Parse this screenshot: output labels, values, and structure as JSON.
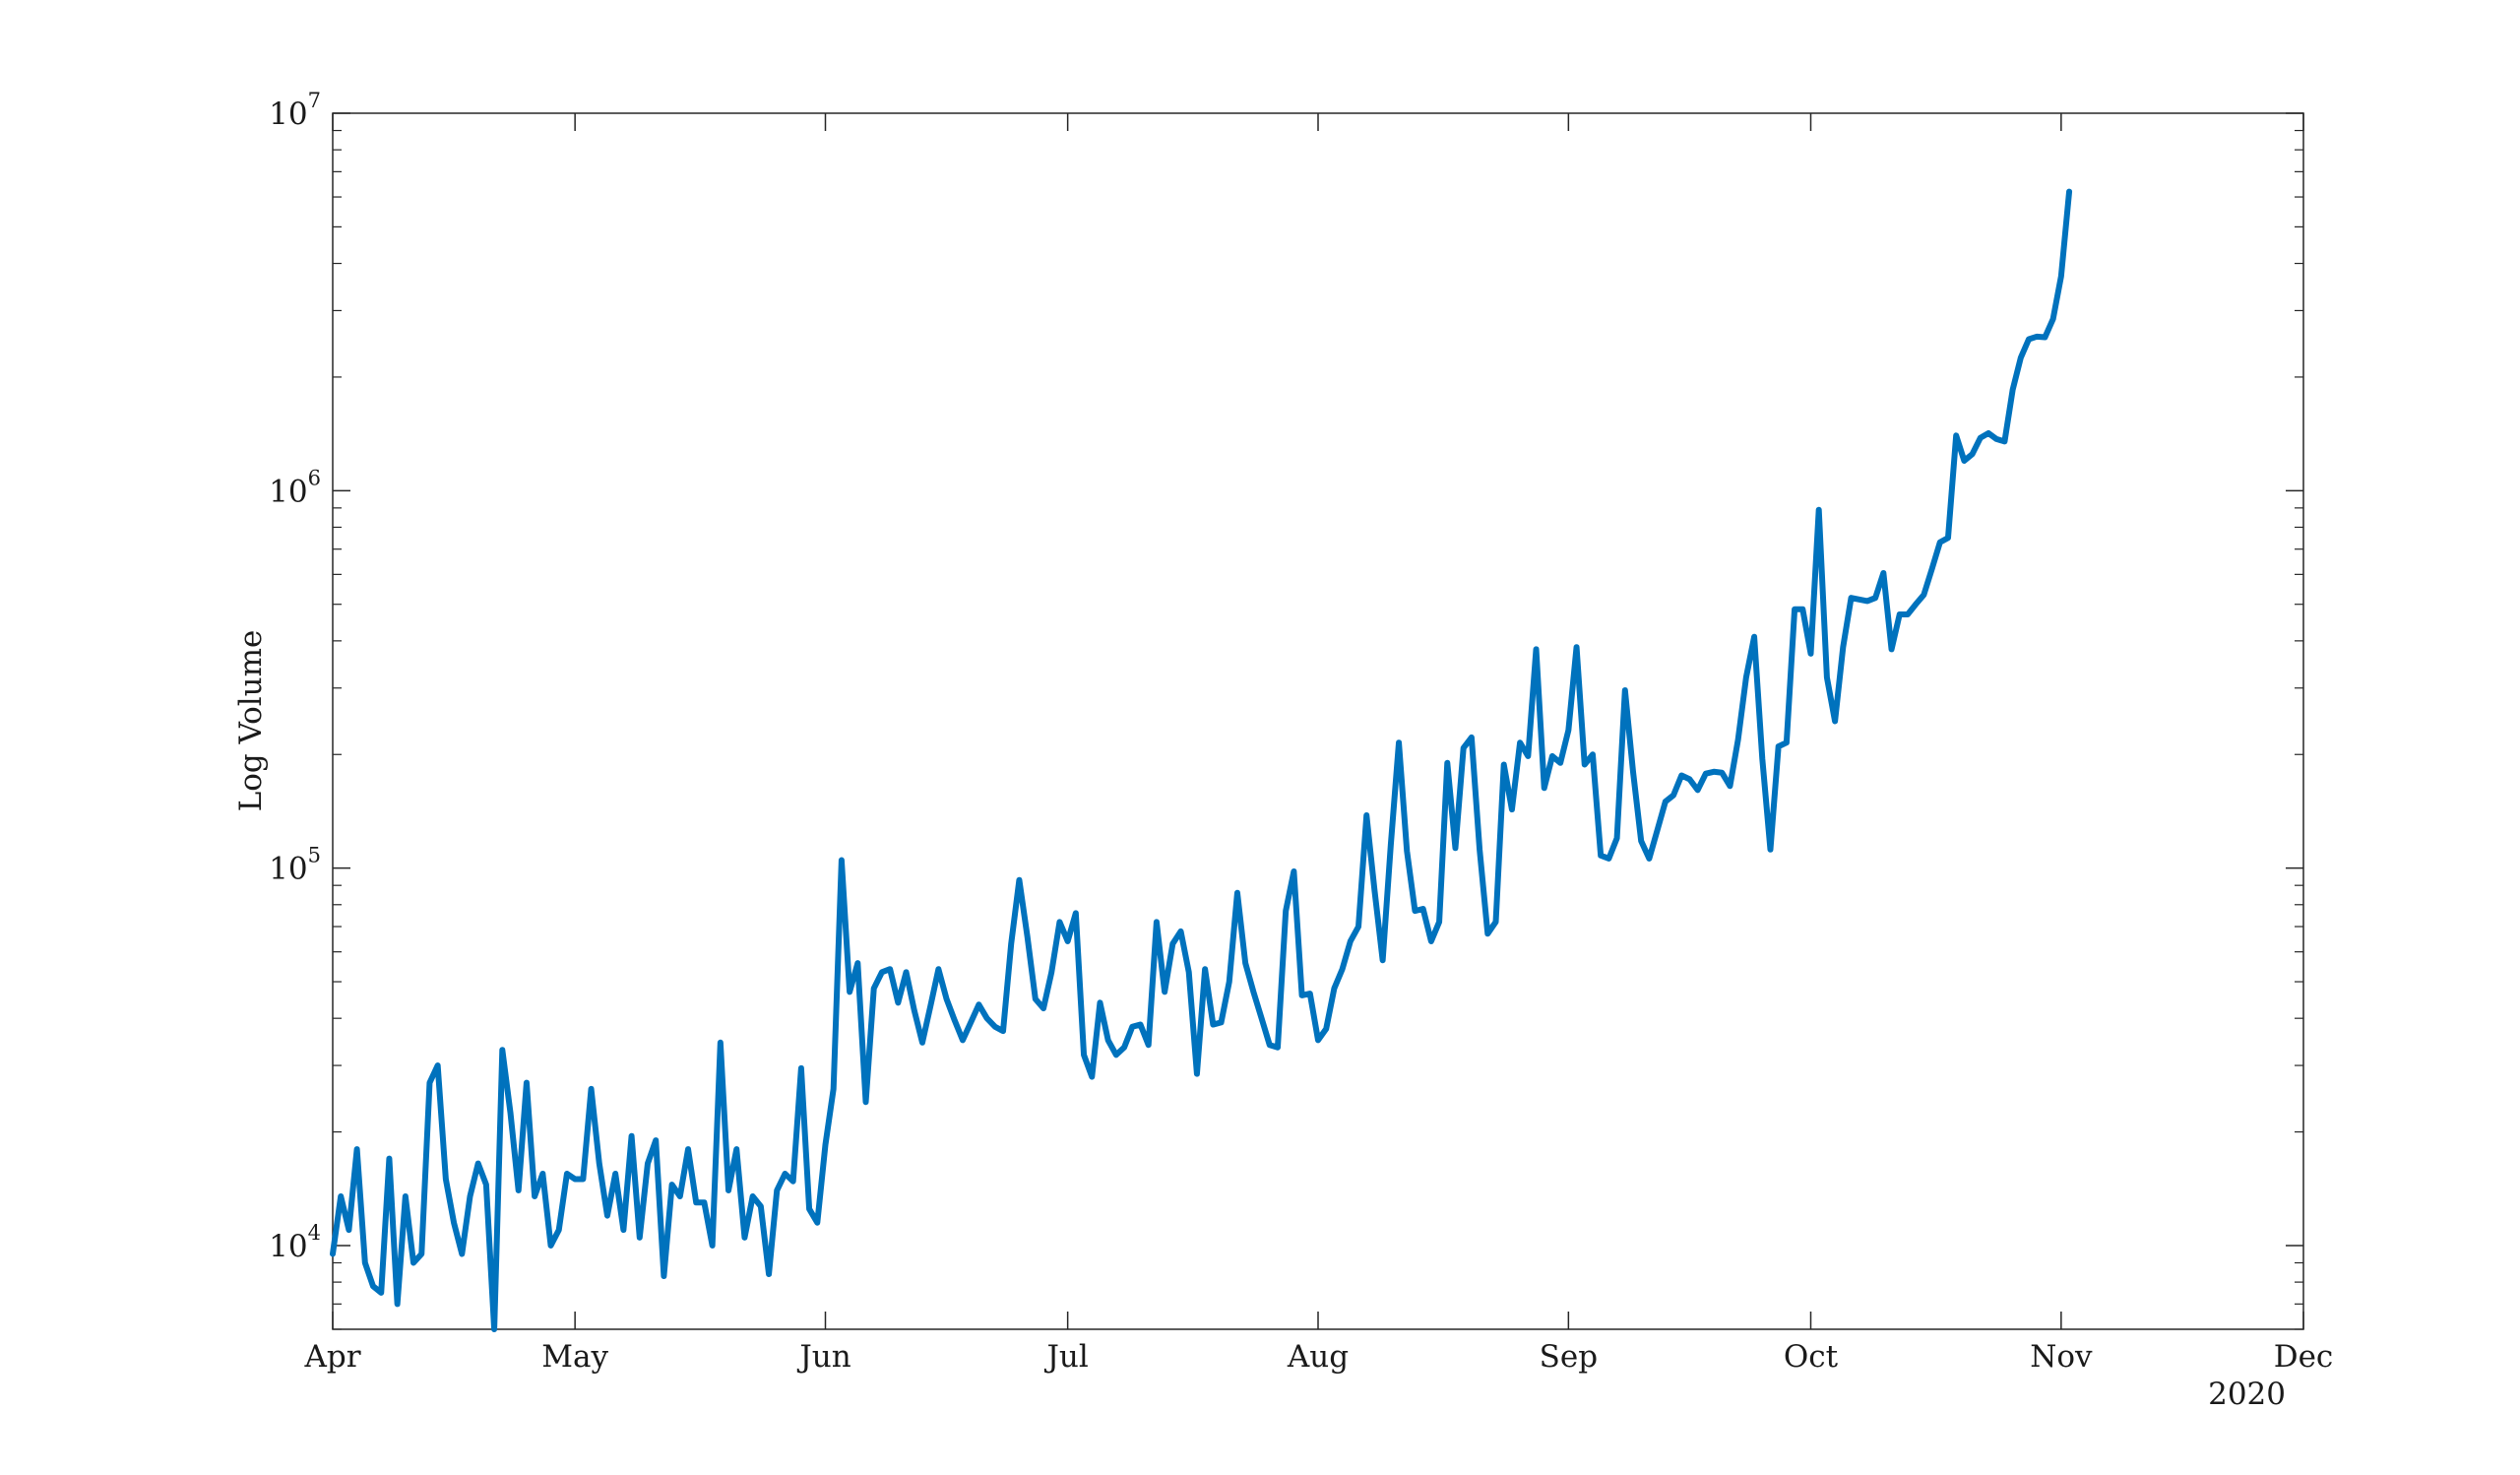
{
  "chart_data": {
    "type": "line",
    "title": "",
    "xlabel": "",
    "ylabel": "Log Volume",
    "y_scale": "log",
    "ylim": [
      6000,
      10000000
    ],
    "xlim": [
      "2020-04-01",
      "2020-12-01"
    ],
    "grid": false,
    "legend": "none",
    "line_color": "#0072BD",
    "x_ticks": [
      {
        "date": "2020-04-01",
        "label": "Apr"
      },
      {
        "date": "2020-05-01",
        "label": "May"
      },
      {
        "date": "2020-06-01",
        "label": "Jun"
      },
      {
        "date": "2020-07-01",
        "label": "Jul"
      },
      {
        "date": "2020-08-01",
        "label": "Aug"
      },
      {
        "date": "2020-09-01",
        "label": "Sep"
      },
      {
        "date": "2020-10-01",
        "label": "Oct"
      },
      {
        "date": "2020-11-01",
        "label": "Nov"
      },
      {
        "date": "2020-12-01",
        "label": "Dec"
      }
    ],
    "x_year_label": "2020",
    "y_ticks": [
      {
        "value": 10000,
        "base": "10",
        "exp": "4"
      },
      {
        "value": 100000,
        "base": "10",
        "exp": "5"
      },
      {
        "value": 1000000,
        "base": "10",
        "exp": "6"
      },
      {
        "value": 10000000,
        "base": "10",
        "exp": "7"
      }
    ],
    "series": [
      {
        "x": [
          "2020-04-01",
          "2020-04-02",
          "2020-04-03",
          "2020-04-04",
          "2020-04-05",
          "2020-04-06",
          "2020-04-07",
          "2020-04-08",
          "2020-04-09",
          "2020-04-10",
          "2020-04-11",
          "2020-04-12",
          "2020-04-13",
          "2020-04-14",
          "2020-04-15",
          "2020-04-16",
          "2020-04-17",
          "2020-04-18",
          "2020-04-19",
          "2020-04-20",
          "2020-04-21",
          "2020-04-22",
          "2020-04-23",
          "2020-04-24",
          "2020-04-25",
          "2020-04-26",
          "2020-04-27",
          "2020-04-28",
          "2020-04-29",
          "2020-04-30",
          "2020-05-01",
          "2020-05-02",
          "2020-05-03",
          "2020-05-04",
          "2020-05-05",
          "2020-05-06",
          "2020-05-07",
          "2020-05-08",
          "2020-05-09",
          "2020-05-10",
          "2020-05-11",
          "2020-05-12",
          "2020-05-13",
          "2020-05-14",
          "2020-05-15",
          "2020-05-16",
          "2020-05-17",
          "2020-05-18",
          "2020-05-19",
          "2020-05-20",
          "2020-05-21",
          "2020-05-22",
          "2020-05-23",
          "2020-05-24",
          "2020-05-25",
          "2020-05-26",
          "2020-05-27",
          "2020-05-28",
          "2020-05-29",
          "2020-05-30",
          "2020-05-31",
          "2020-06-01",
          "2020-06-02",
          "2020-06-03",
          "2020-06-04",
          "2020-06-05",
          "2020-06-06",
          "2020-06-07",
          "2020-06-08",
          "2020-06-09",
          "2020-06-10",
          "2020-06-11",
          "2020-06-12",
          "2020-06-13",
          "2020-06-14",
          "2020-06-15",
          "2020-06-16",
          "2020-06-17",
          "2020-06-18",
          "2020-06-19",
          "2020-06-20",
          "2020-06-21",
          "2020-06-22",
          "2020-06-23",
          "2020-06-24",
          "2020-06-25",
          "2020-06-26",
          "2020-06-27",
          "2020-06-28",
          "2020-06-29",
          "2020-06-30",
          "2020-07-01",
          "2020-07-02",
          "2020-07-03",
          "2020-07-04",
          "2020-07-05",
          "2020-07-06",
          "2020-07-07",
          "2020-07-08",
          "2020-07-09",
          "2020-07-10",
          "2020-07-11",
          "2020-07-12",
          "2020-07-13",
          "2020-07-14",
          "2020-07-15",
          "2020-07-16",
          "2020-07-17",
          "2020-07-18",
          "2020-07-19",
          "2020-07-20",
          "2020-07-21",
          "2020-07-22",
          "2020-07-23",
          "2020-07-24",
          "2020-07-25",
          "2020-07-26",
          "2020-07-27",
          "2020-07-28",
          "2020-07-29",
          "2020-07-30",
          "2020-07-31",
          "2020-08-01",
          "2020-08-02",
          "2020-08-03",
          "2020-08-04",
          "2020-08-05",
          "2020-08-06",
          "2020-08-07",
          "2020-08-08",
          "2020-08-09",
          "2020-08-10",
          "2020-08-11",
          "2020-08-12",
          "2020-08-13",
          "2020-08-14",
          "2020-08-15",
          "2020-08-16",
          "2020-08-17",
          "2020-08-18",
          "2020-08-19",
          "2020-08-20",
          "2020-08-21",
          "2020-08-22",
          "2020-08-23",
          "2020-08-24",
          "2020-08-25",
          "2020-08-26",
          "2020-08-27",
          "2020-08-28",
          "2020-08-29",
          "2020-08-30",
          "2020-08-31",
          "2020-09-01",
          "2020-09-02",
          "2020-09-03",
          "2020-09-04",
          "2020-09-05",
          "2020-09-06",
          "2020-09-07",
          "2020-09-08",
          "2020-09-09",
          "2020-09-10",
          "2020-09-11",
          "2020-09-12",
          "2020-09-13",
          "2020-09-14",
          "2020-09-15",
          "2020-09-16",
          "2020-09-17",
          "2020-09-18",
          "2020-09-19",
          "2020-09-20",
          "2020-09-21",
          "2020-09-22",
          "2020-09-23",
          "2020-09-24",
          "2020-09-25",
          "2020-09-26",
          "2020-09-27",
          "2020-09-28",
          "2020-09-29",
          "2020-09-30",
          "2020-10-01",
          "2020-10-02",
          "2020-10-03",
          "2020-10-04",
          "2020-10-05",
          "2020-10-06",
          "2020-10-07",
          "2020-10-08",
          "2020-10-09",
          "2020-10-10",
          "2020-10-11",
          "2020-10-12",
          "2020-10-13",
          "2020-10-14",
          "2020-10-15",
          "2020-10-16",
          "2020-10-17",
          "2020-10-18",
          "2020-10-19",
          "2020-10-20",
          "2020-10-21",
          "2020-10-22",
          "2020-10-23",
          "2020-10-24",
          "2020-10-25",
          "2020-10-26",
          "2020-10-27",
          "2020-10-28",
          "2020-10-29",
          "2020-10-30",
          "2020-10-31",
          "2020-11-01",
          "2020-11-02"
        ],
        "y": [
          9500,
          13500,
          11000,
          18000,
          9000,
          7800,
          7500,
          17000,
          7000,
          13500,
          9000,
          9500,
          27000,
          30000,
          15000,
          11500,
          9500,
          13500,
          16500,
          14500,
          6000,
          33000,
          22500,
          14000,
          27000,
          13500,
          15500,
          10000,
          11000,
          15500,
          15000,
          15000,
          26000,
          16500,
          12000,
          15500,
          11000,
          19500,
          10500,
          16500,
          19000,
          8300,
          14500,
          13500,
          18000,
          13000,
          13000,
          10000,
          34500,
          14000,
          18000,
          10500,
          13500,
          12700,
          8400,
          14000,
          15500,
          14800,
          29500,
          12500,
          11500,
          18500,
          26000,
          105000,
          47000,
          56000,
          24000,
          48000,
          53000,
          54000,
          44000,
          53000,
          42000,
          34500,
          43000,
          54000,
          45000,
          39500,
          35000,
          39000,
          43500,
          40000,
          38000,
          37000,
          63000,
          93000,
          66000,
          45000,
          42500,
          53000,
          72000,
          64000,
          76000,
          32000,
          28000,
          44000,
          35000,
          32000,
          33500,
          38000,
          38500,
          34000,
          72000,
          47000,
          63000,
          68000,
          53000,
          28500,
          54000,
          38500,
          39000,
          50000,
          86000,
          56000,
          47000,
          40000,
          34000,
          33500,
          77000,
          98000,
          46000,
          46500,
          35000,
          37500,
          48000,
          54000,
          64000,
          70000,
          138000,
          87000,
          57000,
          115000,
          215000,
          111000,
          77000,
          78000,
          64000,
          72000,
          190000,
          113000,
          208000,
          222000,
          112000,
          67000,
          72000,
          188000,
          143000,
          215000,
          198000,
          380000,
          163000,
          198000,
          190000,
          232000,
          385000,
          188000,
          200000,
          108000,
          106000,
          120000,
          296000,
          180000,
          118000,
          106000,
          126000,
          150000,
          156000,
          176000,
          172000,
          161000,
          178000,
          180000,
          179000,
          165000,
          219000,
          320000,
          410000,
          195000,
          112000,
          210000,
          215000,
          485000,
          485000,
          370000,
          890000,
          320000,
          245000,
          385000,
          520000,
          515000,
          510000,
          520000,
          605000,
          380000,
          470000,
          470000,
          500000,
          530000,
          620000,
          730000,
          750000,
          1400000,
          1200000,
          1250000,
          1380000,
          1420000,
          1370000,
          1350000,
          1850000,
          2250000,
          2520000,
          2560000,
          2550000,
          2850000,
          3700000,
          6200000
        ]
      }
    ]
  }
}
